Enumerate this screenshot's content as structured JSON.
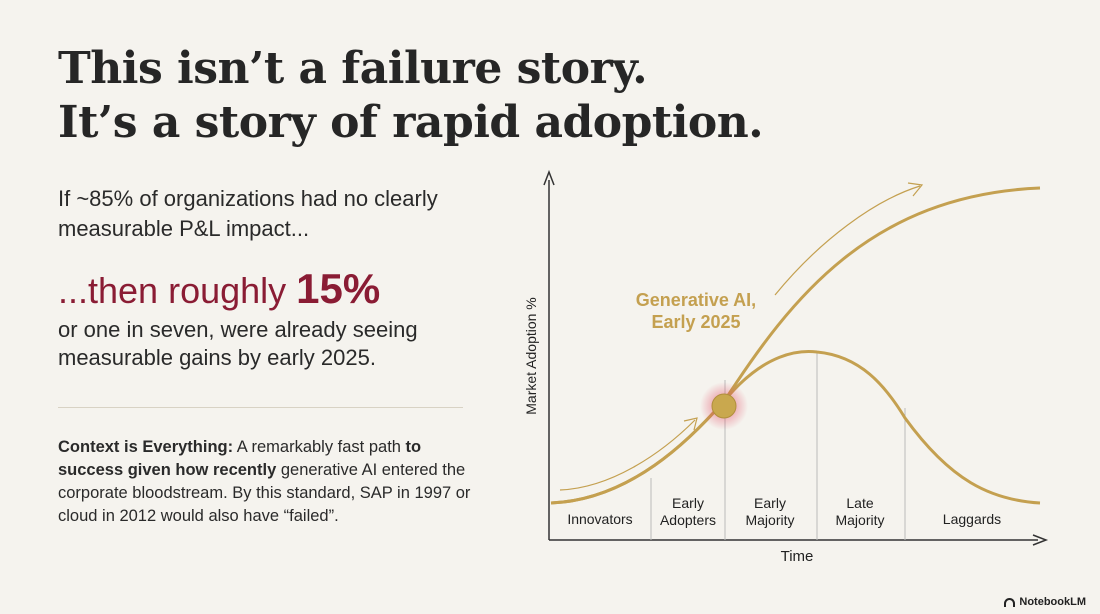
{
  "headline": {
    "line1": "This isn’t a failure story.",
    "line2": "It’s a story of rapid adoption."
  },
  "intro": "If ~85% of organizations had no clearly measurable P&L impact...",
  "highlight": {
    "prefix": "...then roughly ",
    "value": "15%"
  },
  "followup": "or one in seven, were already seeing measurable gains by early 2025.",
  "context": {
    "lead": "Context is Everything:",
    "part1": " A remarkably fast path ",
    "bold2": "to success given how recently",
    "part2": " generative AI entered the corporate bloodstream. By this standard, SAP in 1997 or cloud in 2012 would also have “failed”."
  },
  "chart_data": {
    "type": "diagram",
    "title": "",
    "xlabel": "Time",
    "ylabel": "Market Adoption %",
    "annotation": {
      "line1": "Generative AI,",
      "line2": "Early 2025",
      "position": "between Early Adopters and Early Majority"
    },
    "segments": [
      {
        "line1": "Innovators",
        "line2": ""
      },
      {
        "line1": "Early",
        "line2": "Adopters"
      },
      {
        "line1": "Early",
        "line2": "Majority"
      },
      {
        "line1": "Late",
        "line2": "Majority"
      },
      {
        "line1": "Laggards",
        "line2": ""
      }
    ],
    "curves": [
      "cumulative adoption (S-curve)",
      "adopter distribution (bell curve)"
    ]
  },
  "colors": {
    "accent_red": "#8a1c34",
    "gold": "#c4a050",
    "marker_glow": "#e0405a"
  },
  "brand": "NotebookLM"
}
